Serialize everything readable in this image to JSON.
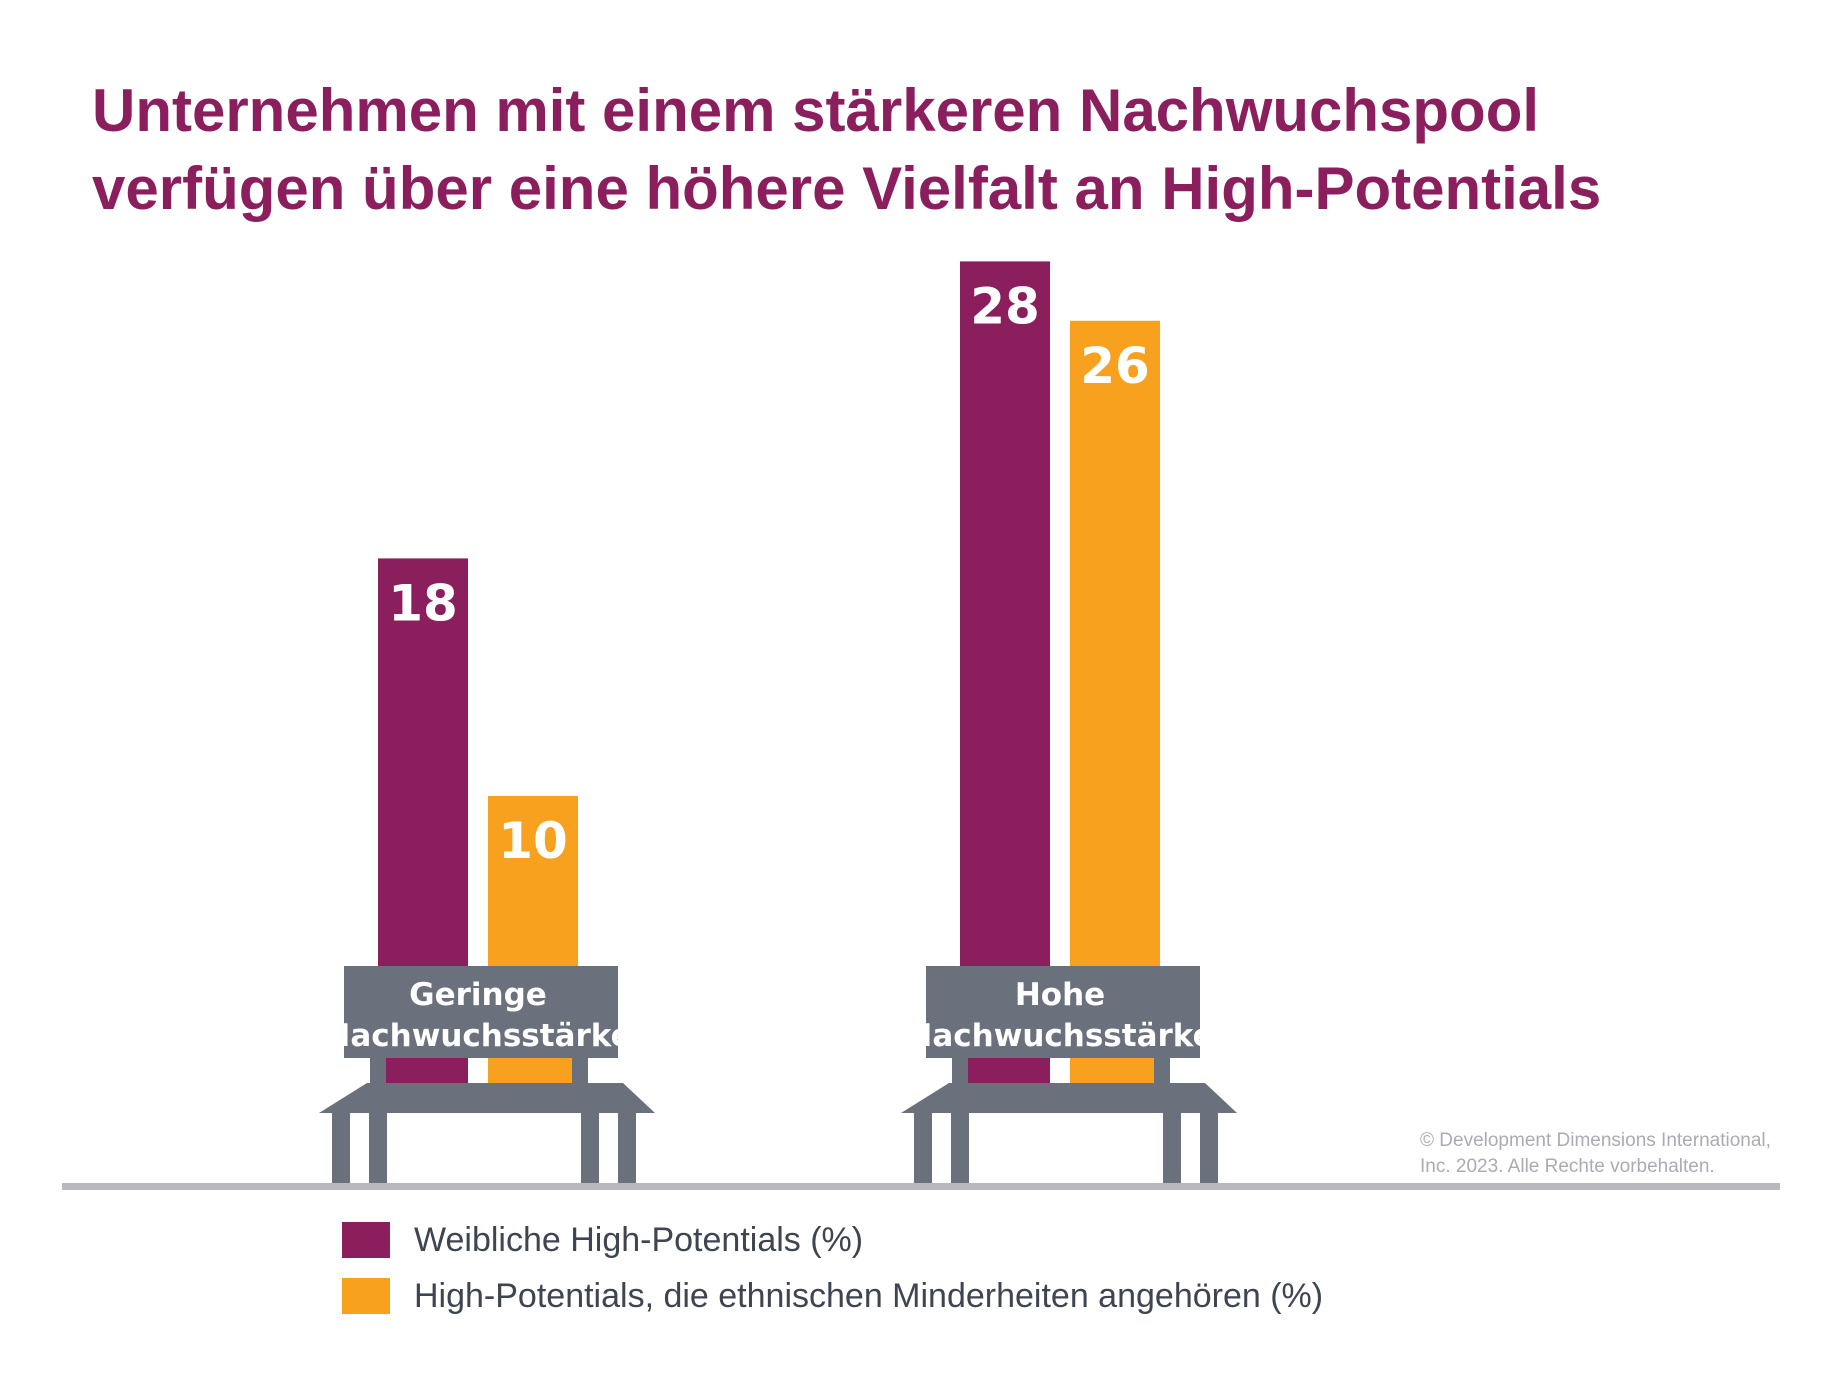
{
  "title_lines": [
    "Unternehmen mit einem stärkeren Nachwuchspool",
    "verfügen über eine höhere Vielfalt an High-Potentials"
  ],
  "colors": {
    "title": "#8b1f5e",
    "series_women": "#8b1f5e",
    "series_minorities": "#f7a11f",
    "bench": "#6b717c",
    "baseline": "#b7b9be"
  },
  "copyright_lines": [
    "© Development Dimensions International,",
    "Inc. 2023. Alle Rechte vorbehalten."
  ],
  "chart_data": {
    "type": "bar",
    "categories": [
      [
        "Geringe",
        "Nachwuchsstärke"
      ],
      [
        "Hohe",
        "Nachwuchsstärke"
      ]
    ],
    "series": [
      {
        "name": "Weibliche High-Potentials (%)",
        "values": [
          18,
          28
        ],
        "color": "#8b1f5e"
      },
      {
        "name": "High-Potentials, die ethnischen Minderheiten angehören (%)",
        "values": [
          10,
          26
        ],
        "color": "#f7a11f"
      }
    ],
    "title": "Unternehmen mit einem stärkeren Nachwuchspool verfügen über eine höhere Vielfalt an High-Potentials",
    "xlabel": "",
    "ylabel": "",
    "grid": false,
    "legend": "bottom"
  }
}
